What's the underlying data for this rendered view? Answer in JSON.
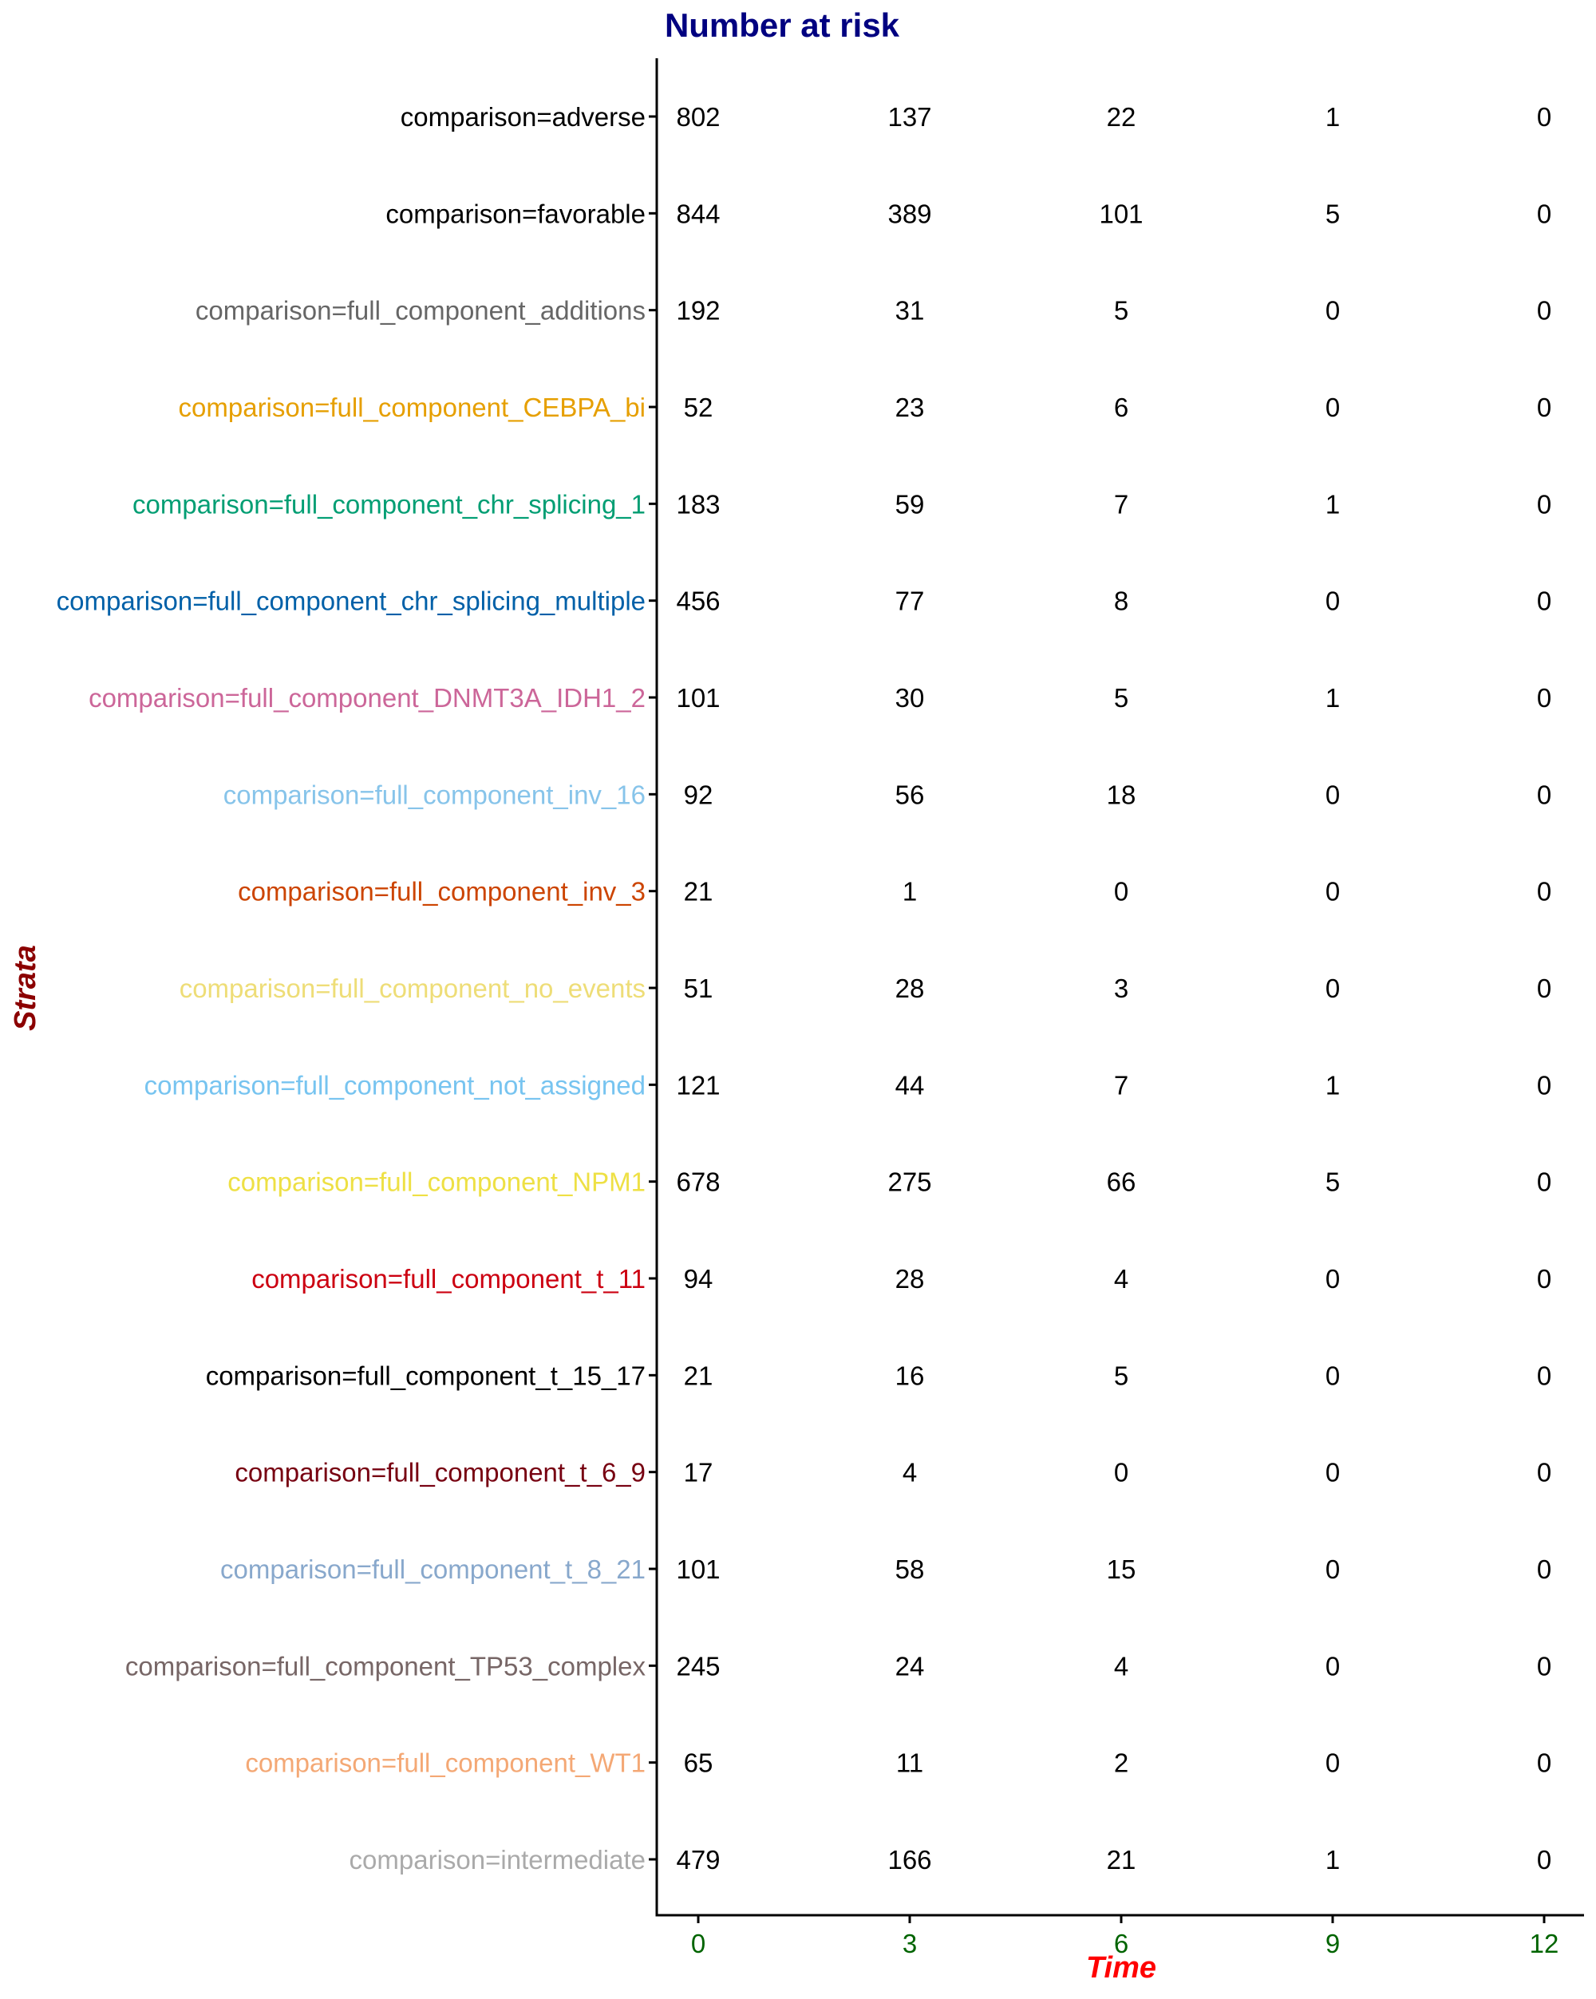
{
  "chart_data": {
    "type": "table",
    "title": "Number at risk",
    "title_color": "#000080",
    "xlabel": "Time",
    "xlabel_color": "#ff0000",
    "ylabel": "Strata",
    "ylabel_color": "#8b0000",
    "x_tick_color": "#006400",
    "value_color": "#000000",
    "x": [
      0,
      3,
      6,
      9,
      12
    ],
    "xlim": [
      -1,
      13
    ],
    "grid": false,
    "legend": "none",
    "strata": [
      {
        "name": "comparison=adverse",
        "color": "#000000",
        "values": [
          802,
          137,
          22,
          1,
          0
        ]
      },
      {
        "name": "comparison=favorable",
        "color": "#000000",
        "values": [
          844,
          389,
          101,
          5,
          0
        ]
      },
      {
        "name": "comparison=full_component_additions",
        "color": "#666666",
        "values": [
          192,
          31,
          5,
          0,
          0
        ]
      },
      {
        "name": "comparison=full_component_CEBPA_bi",
        "color": "#E69F00",
        "values": [
          52,
          23,
          6,
          0,
          0
        ]
      },
      {
        "name": "comparison=full_component_chr_splicing_1",
        "color": "#009E73",
        "values": [
          183,
          59,
          7,
          1,
          0
        ]
      },
      {
        "name": "comparison=full_component_chr_splicing_multiple",
        "color": "#0060A8",
        "values": [
          456,
          77,
          8,
          0,
          0
        ]
      },
      {
        "name": "comparison=full_component_DNMT3A_IDH1_2",
        "color": "#CC6699",
        "values": [
          101,
          30,
          5,
          1,
          0
        ]
      },
      {
        "name": "comparison=full_component_inv_16",
        "color": "#87C4EA",
        "values": [
          92,
          56,
          18,
          0,
          0
        ]
      },
      {
        "name": "comparison=full_component_inv_3",
        "color": "#CC4400",
        "values": [
          21,
          1,
          0,
          0,
          0
        ]
      },
      {
        "name": "comparison=full_component_no_events",
        "color": "#EEDD77",
        "values": [
          51,
          28,
          3,
          0,
          0
        ]
      },
      {
        "name": "comparison=full_component_not_assigned",
        "color": "#77C4F0",
        "values": [
          121,
          44,
          7,
          1,
          0
        ]
      },
      {
        "name": "comparison=full_component_NPM1",
        "color": "#EEE044",
        "values": [
          678,
          275,
          66,
          5,
          0
        ]
      },
      {
        "name": "comparison=full_component_t_11",
        "color": "#CC0011",
        "values": [
          94,
          28,
          4,
          0,
          0
        ]
      },
      {
        "name": "comparison=full_component_t_15_17",
        "color": "#000000",
        "values": [
          21,
          16,
          5,
          0,
          0
        ]
      },
      {
        "name": "comparison=full_component_t_6_9",
        "color": "#770011",
        "values": [
          17,
          4,
          0,
          0,
          0
        ]
      },
      {
        "name": "comparison=full_component_t_8_21",
        "color": "#88A8CC",
        "values": [
          101,
          58,
          15,
          0,
          0
        ]
      },
      {
        "name": "comparison=full_component_TP53_complex",
        "color": "#776666",
        "values": [
          245,
          24,
          4,
          0,
          0
        ]
      },
      {
        "name": "comparison=full_component_WT1",
        "color": "#F4A875",
        "values": [
          65,
          11,
          2,
          0,
          0
        ]
      },
      {
        "name": "comparison=intermediate",
        "color": "#AAAAAA",
        "values": [
          479,
          166,
          21,
          1,
          0
        ]
      }
    ]
  }
}
